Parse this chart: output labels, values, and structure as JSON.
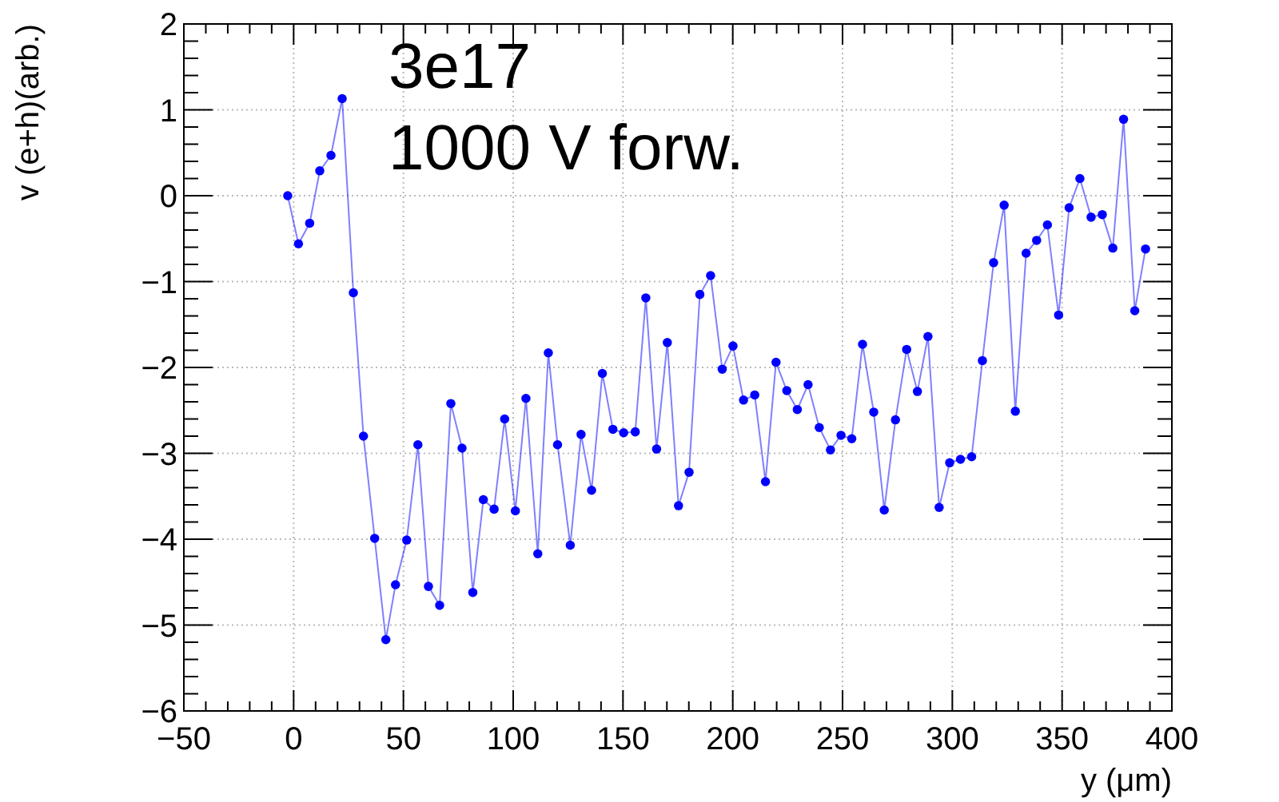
{
  "chart_data": {
    "type": "line",
    "xlabel": "y (μm)",
    "ylabel": "v (e+h)(arb.)",
    "annotations": [
      "3e17",
      "1000 V forw."
    ],
    "xlim": [
      -50,
      400
    ],
    "ylim": [
      -6,
      2
    ],
    "xticks": [
      -50,
      0,
      50,
      100,
      150,
      200,
      250,
      300,
      350,
      400
    ],
    "yticks": [
      -6,
      -5,
      -4,
      -3,
      -2,
      -1,
      0,
      1,
      2
    ],
    "grid": true,
    "marker": "circle",
    "line_style": "solid",
    "x": [
      -2.7,
      2.2,
      7.3,
      11.9,
      17,
      22.1,
      27.2,
      31.8,
      36.9,
      42,
      46.4,
      51.5,
      56.6,
      61.4,
      66.5,
      71.6,
      76.7,
      81.6,
      86.4,
      91.3,
      96.1,
      101,
      105.8,
      111.2,
      116,
      120.2,
      126,
      130.9,
      135.7,
      140.6,
      145.4,
      150.3,
      155.6,
      160.4,
      165.3,
      170.2,
      175.3,
      180.1,
      185,
      189.9,
      195.2,
      200.1,
      204.9,
      210,
      214.9,
      219.7,
      224.6,
      229.4,
      234.3,
      239.4,
      244.5,
      249.3,
      254.2,
      259.1,
      264.2,
      269,
      274.1,
      279.2,
      284.1,
      288.9,
      294,
      298.8,
      303.7,
      308.8,
      313.7,
      318.8,
      323.6,
      328.7,
      333.6,
      338.4,
      343.3,
      348.4,
      353.2,
      358.1,
      363.2,
      368.3,
      373.1,
      378,
      383.1,
      388
    ],
    "series": [
      {
        "color": "#0000ff",
        "values": [
          0,
          -0.56,
          -0.32,
          0.29,
          0.47,
          1.13,
          -1.13,
          -2.8,
          -3.99,
          -5.17,
          -4.53,
          -4.01,
          -2.9,
          -4.55,
          -4.77,
          -2.42,
          -2.94,
          -4.62,
          -3.54,
          -3.65,
          -2.6,
          -3.67,
          -2.36,
          -4.17,
          -1.83,
          -2.9,
          -4.07,
          -2.78,
          -3.43,
          -2.07,
          -2.72,
          -2.76,
          -2.75,
          -1.19,
          -2.95,
          -1.71,
          -3.61,
          -3.22,
          -1.15,
          -0.93,
          -2.02,
          -1.75,
          -2.38,
          -2.32,
          -3.33,
          -1.94,
          -2.27,
          -2.49,
          -2.2,
          -2.7,
          -2.96,
          -2.79,
          -2.83,
          -1.73,
          -2.52,
          -3.66,
          -2.61,
          -1.79,
          -2.28,
          -1.64,
          -3.63,
          -3.11,
          -3.07,
          -3.04,
          -1.92,
          -0.78,
          -0.11,
          -2.51,
          -0.67,
          -0.52,
          -0.34,
          -1.39,
          -0.14,
          0.2,
          -0.25,
          -0.22,
          -0.61,
          0.89,
          -1.34,
          -0.62
        ]
      }
    ]
  }
}
